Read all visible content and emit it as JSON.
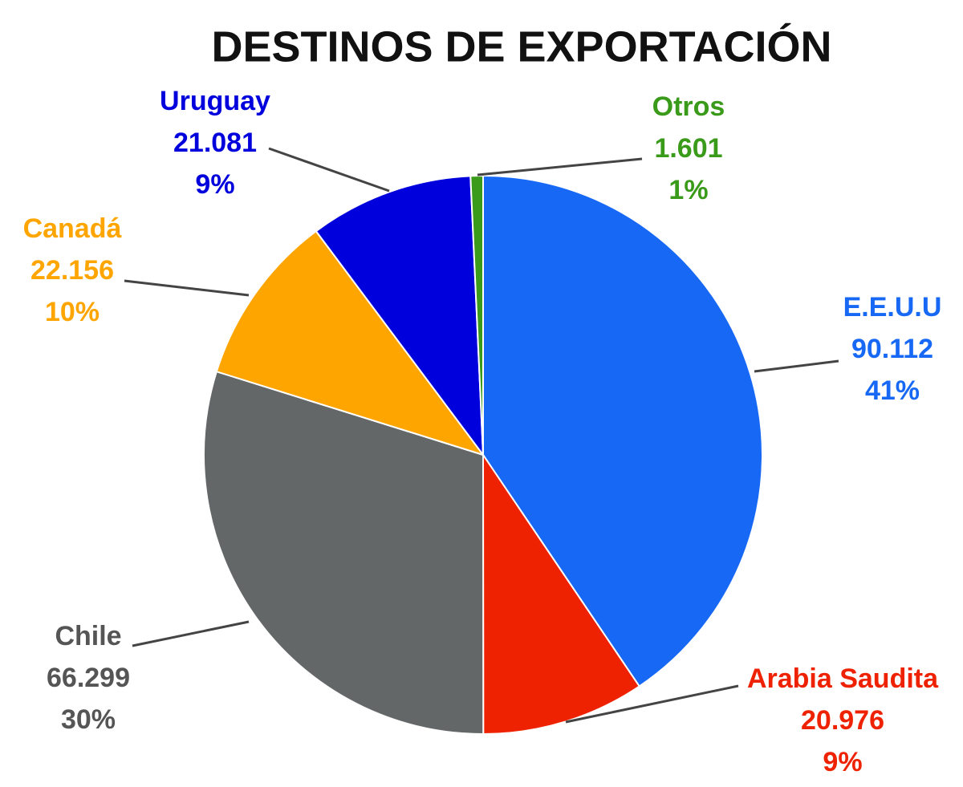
{
  "chart_data": {
    "type": "pie",
    "title": "DESTINOS DE EXPORTACIÓN",
    "categories": [
      "E.E.U.U",
      "Arabia Saudita",
      "Chile",
      "Canadá",
      "Uruguay",
      "Otros"
    ],
    "values": [
      90112,
      20976,
      66299,
      22156,
      21081,
      1601
    ],
    "value_labels": [
      "90.112",
      "20.976",
      "66.299",
      "22.156",
      "21.081",
      "1.601"
    ],
    "percent_labels": [
      "41%",
      "9%",
      "30%",
      "10%",
      "9%",
      "1%"
    ],
    "colors": [
      "#1668f5",
      "#ee2200",
      "#636768",
      "#ffa500",
      "#0000dd",
      "#3a9a1a"
    ]
  }
}
